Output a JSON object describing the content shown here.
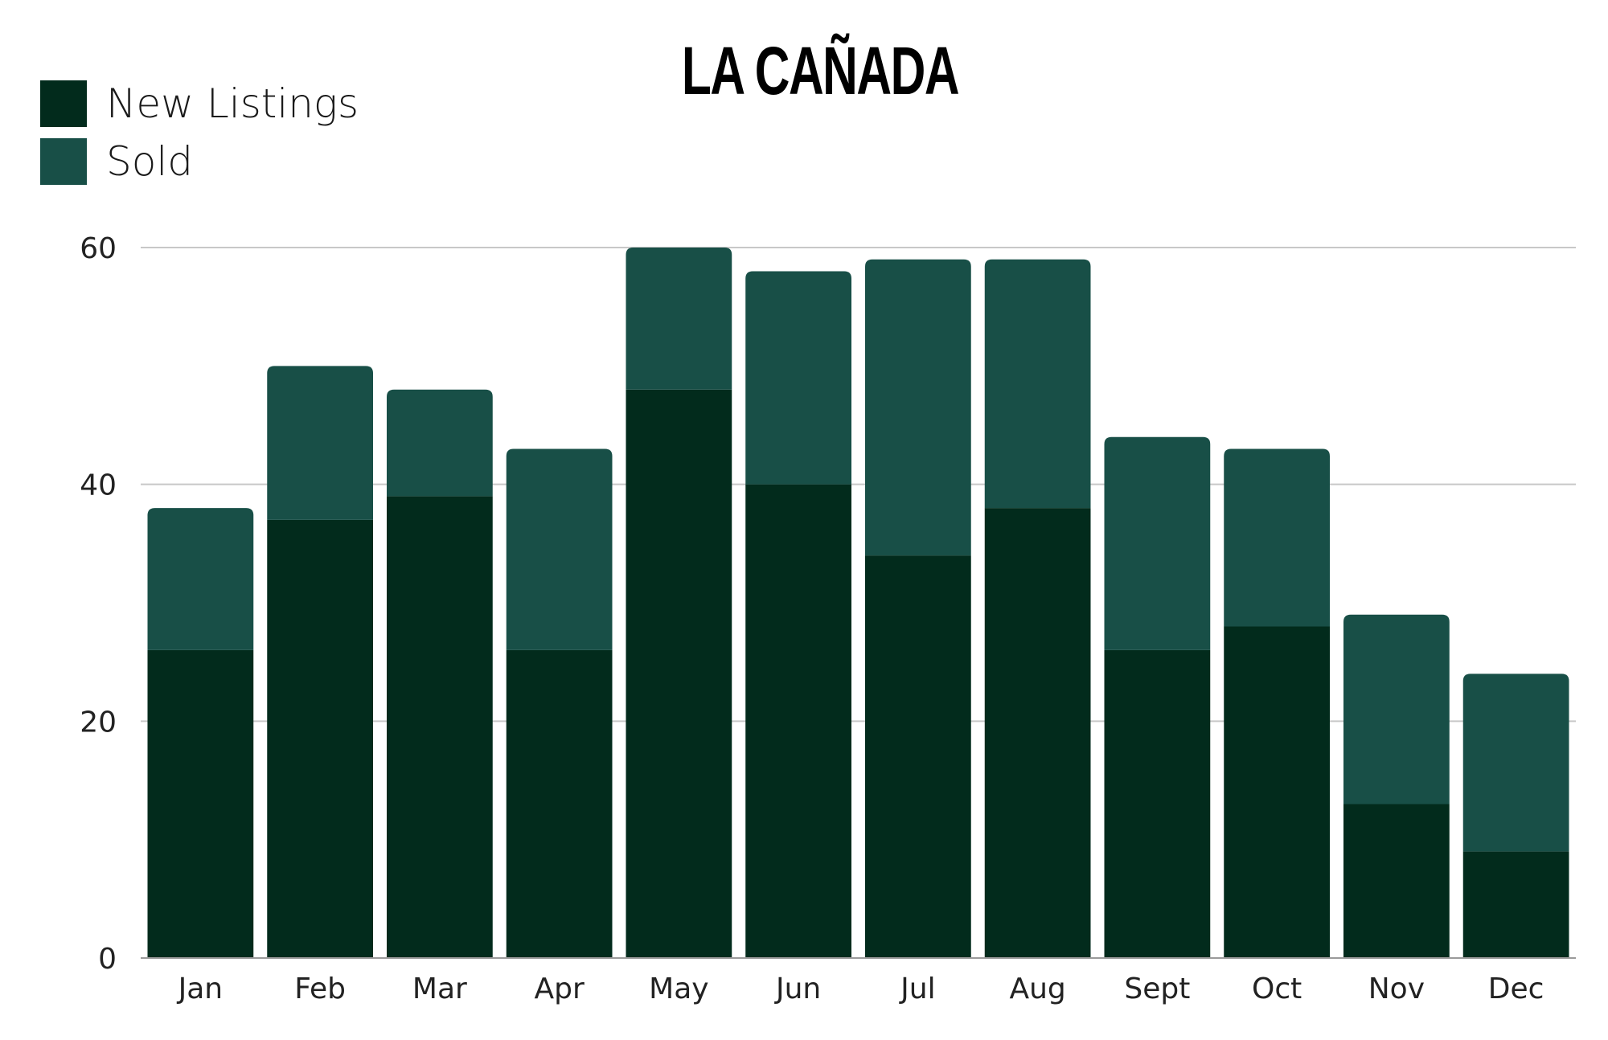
{
  "chart_data": {
    "type": "bar",
    "title": "LA CAÑADA",
    "categories": [
      "Jan",
      "Feb",
      "Mar",
      "Apr",
      "May",
      "Jun",
      "Jul",
      "Aug",
      "Sept",
      "Oct",
      "Nov",
      "Dec"
    ],
    "series": [
      {
        "name": "New Listings",
        "values": [
          26,
          37,
          39,
          26,
          48,
          40,
          34,
          38,
          26,
          28,
          13,
          9
        ],
        "color": "#022b1c"
      },
      {
        "name": "Sold",
        "values": [
          12,
          13,
          9,
          17,
          12,
          18,
          25,
          21,
          18,
          15,
          16,
          15
        ],
        "color": "#184f47"
      }
    ],
    "stacked": true,
    "yticks": [
      0,
      20,
      40,
      60
    ],
    "ylim": [
      0,
      60
    ],
    "grid": true,
    "legend_position": "top-left",
    "xlabel": "",
    "ylabel": ""
  }
}
